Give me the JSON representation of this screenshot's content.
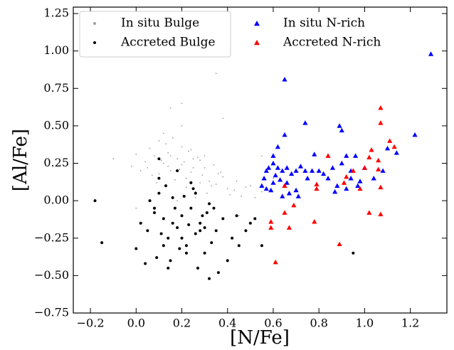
{
  "chart_data": {
    "type": "scatter",
    "xlabel": "[N/Fe]",
    "ylabel": "[Al/Fe]",
    "xlim": [
      -0.275,
      1.36
    ],
    "ylim": [
      -0.75,
      1.293
    ],
    "xticks": [
      {
        "value": -0.2,
        "label": "−0.2"
      },
      {
        "value": 0.0,
        "label": "0.0"
      },
      {
        "value": 0.2,
        "label": "0.2"
      },
      {
        "value": 0.4,
        "label": "0.4"
      },
      {
        "value": 0.6,
        "label": "0.6"
      },
      {
        "value": 0.8,
        "label": "0.8"
      },
      {
        "value": 1.0,
        "label": "1.0"
      },
      {
        "value": 1.2,
        "label": "1.2"
      }
    ],
    "yticks": [
      {
        "value": -0.75,
        "label": "−0.75"
      },
      {
        "value": -0.5,
        "label": "−0.50"
      },
      {
        "value": -0.25,
        "label": "−0.25"
      },
      {
        "value": 0.0,
        "label": "0.00"
      },
      {
        "value": 0.25,
        "label": "0.25"
      },
      {
        "value": 0.5,
        "label": "0.50"
      },
      {
        "value": 0.75,
        "label": "0.75"
      },
      {
        "value": 1.0,
        "label": "1.00"
      },
      {
        "value": 1.25,
        "label": "1.25"
      }
    ],
    "legend": "upper left",
    "series": [
      {
        "name": "In situ Bulge",
        "color": "#a0a0a0",
        "marker": "dot",
        "x": [
          0.05,
          0.08,
          0.1,
          0.12,
          0.15,
          0.18,
          0.2,
          0.22,
          0.25,
          0.28,
          0.3,
          0.33,
          0.36,
          0.4,
          0.02,
          0.06,
          0.11,
          0.14,
          0.17,
          0.21,
          0.24,
          0.27,
          0.31,
          0.35,
          0.38,
          0.43,
          0.46,
          0.5,
          0.13,
          0.19,
          0.23,
          0.26,
          0.29,
          0.16,
          0.09,
          0.04,
          0.34,
          0.41,
          0.44,
          0.48,
          0.52,
          0.55,
          -0.02,
          0.0,
          0.07,
          0.12,
          0.2,
          0.25,
          0.3,
          0.18,
          0.22,
          0.15,
          0.1,
          0.28,
          0.32,
          0.37,
          0.26,
          0.14,
          0.24,
          0.2,
          -0.1,
          0.35,
          0.2,
          0.6,
          0.45,
          0.0,
          0.28,
          0.38,
          0.55,
          0.15
        ],
        "y": [
          0.22,
          0.3,
          0.18,
          0.25,
          0.2,
          0.28,
          0.24,
          0.15,
          0.22,
          0.12,
          0.3,
          0.1,
          0.18,
          0.08,
          0.2,
          0.35,
          0.27,
          0.32,
          0.14,
          0.26,
          0.19,
          0.29,
          0.05,
          0.11,
          0.16,
          0.07,
          0.03,
          0.1,
          0.38,
          0.21,
          0.33,
          0.06,
          0.17,
          0.42,
          0.12,
          0.26,
          0.24,
          0.04,
          0.13,
          0.09,
          0.02,
          0.06,
          0.23,
          0.31,
          0.17,
          0.45,
          0.36,
          0.28,
          0.22,
          0.0,
          0.09,
          0.3,
          0.4,
          0.27,
          0.13,
          0.19,
          0.02,
          0.23,
          0.34,
          0.5,
          0.28,
          0.85,
          0.65,
          0.15,
          -0.1,
          -0.05,
          -0.2,
          0.55,
          0.3,
          0.62
        ]
      },
      {
        "name": "Accreted Bulge",
        "color": "#000000",
        "marker": "dot",
        "x": [
          -0.18,
          -0.15,
          0.0,
          0.02,
          0.05,
          0.08,
          0.1,
          0.12,
          0.14,
          0.16,
          0.18,
          0.2,
          0.22,
          0.24,
          0.26,
          0.28,
          0.3,
          0.32,
          0.35,
          0.38,
          0.4,
          0.42,
          0.45,
          0.5,
          0.1,
          0.13,
          0.17,
          0.21,
          0.25,
          0.29,
          0.33,
          0.11,
          0.15,
          0.19,
          0.23,
          0.27,
          0.06,
          0.09,
          0.31,
          0.36,
          0.44,
          0.48,
          0.52,
          0.55,
          0.2,
          0.16,
          0.12,
          0.24,
          0.28,
          0.08,
          0.95,
          0.32,
          0.04,
          0.18,
          0.22,
          0.26,
          0.14,
          0.3,
          0.34,
          0.1
        ],
        "y": [
          0.0,
          -0.28,
          -0.32,
          -0.15,
          -0.2,
          -0.08,
          0.05,
          -0.12,
          -0.25,
          0.02,
          -0.18,
          -0.1,
          -0.3,
          -0.05,
          -0.22,
          -0.15,
          -0.35,
          -0.02,
          -0.2,
          -0.12,
          -0.4,
          -0.25,
          -0.3,
          -0.15,
          0.15,
          0.1,
          -0.05,
          0.03,
          0.08,
          -0.1,
          -0.28,
          -0.22,
          -0.4,
          -0.32,
          -0.16,
          -0.45,
          0.0,
          -0.38,
          -0.08,
          -0.48,
          -0.1,
          -0.2,
          -0.12,
          -0.3,
          -0.25,
          -0.15,
          -0.3,
          0.12,
          -0.2,
          -0.05,
          -0.35,
          -0.52,
          -0.42,
          0.2,
          -0.35,
          0.05,
          -0.45,
          -0.18,
          -0.05,
          0.28
        ]
      },
      {
        "name": "In situ N-rich",
        "color": "#0000ff",
        "marker": "triangle",
        "x": [
          0.65,
          1.29,
          0.65,
          0.74,
          0.89,
          0.9,
          1.22,
          0.78,
          0.62,
          0.6,
          0.57,
          0.58,
          0.6,
          0.62,
          0.55,
          0.56,
          0.57,
          0.59,
          0.6,
          0.61,
          0.63,
          0.64,
          0.66,
          0.68,
          0.7,
          0.72,
          0.74,
          0.65,
          0.67,
          0.7,
          0.71,
          0.64,
          0.66,
          0.75,
          0.77,
          0.8,
          0.82,
          0.84,
          0.86,
          0.88,
          0.9,
          0.92,
          0.94,
          0.96,
          0.98,
          1.0,
          1.04,
          1.08,
          1.1,
          1.14,
          0.92,
          0.87,
          0.94,
          0.97
        ],
        "y": [
          0.81,
          0.98,
          0.44,
          0.52,
          0.5,
          0.47,
          0.44,
          0.31,
          0.36,
          0.3,
          0.2,
          0.22,
          0.25,
          0.22,
          0.1,
          0.15,
          0.08,
          0.07,
          0.12,
          0.17,
          0.14,
          0.2,
          0.22,
          0.18,
          0.2,
          0.23,
          0.2,
          0.1,
          0.05,
          0.07,
          0.03,
          0.03,
          0.12,
          0.15,
          0.2,
          0.2,
          0.18,
          0.15,
          0.22,
          0.1,
          0.25,
          0.3,
          0.2,
          0.3,
          0.13,
          0.22,
          0.15,
          0.2,
          0.35,
          0.32,
          0.08,
          0.06,
          0.15,
          0.1
        ]
      },
      {
        "name": "Accreted N-rich",
        "color": "#ff0000",
        "marker": "triangle",
        "x": [
          1.07,
          1.07,
          1.11,
          1.13,
          1.03,
          1.02,
          1.06,
          1.06,
          1.0,
          0.95,
          0.92,
          0.84,
          0.79,
          0.79,
          0.65,
          0.69,
          0.65,
          0.59,
          0.59,
          0.67,
          0.78,
          0.89,
          0.61,
          1.02,
          1.07,
          0.98,
          1.07,
          0.91
        ],
        "y": [
          0.62,
          0.52,
          0.4,
          0.36,
          0.34,
          0.29,
          0.27,
          0.21,
          0.22,
          0.2,
          0.16,
          0.3,
          0.11,
          0.08,
          0.1,
          -0.03,
          -0.08,
          -0.14,
          -0.18,
          -0.18,
          -0.14,
          -0.29,
          -0.41,
          -0.08,
          0.09,
          0.08,
          -0.09,
          0.12
        ]
      }
    ]
  }
}
